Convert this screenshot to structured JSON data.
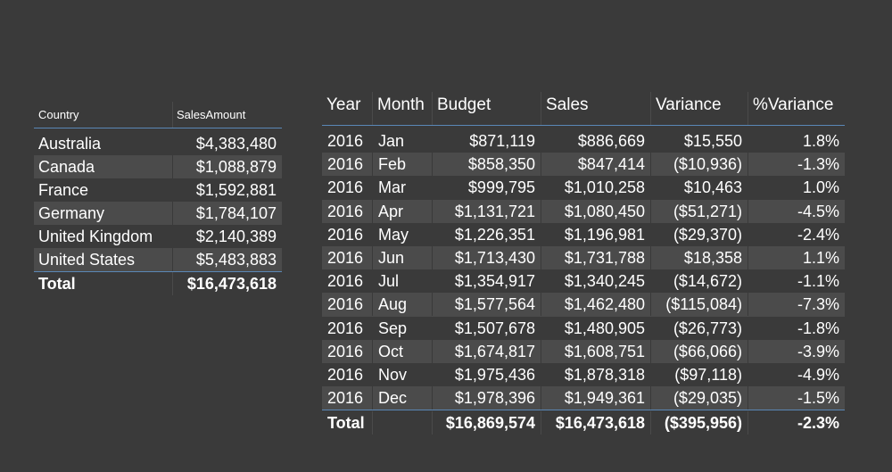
{
  "country_table": {
    "headers": [
      "Country",
      "SalesAmount"
    ],
    "rows": [
      {
        "country": "Australia",
        "sales": "$4,383,480"
      },
      {
        "country": "Canada",
        "sales": "$1,088,879"
      },
      {
        "country": "France",
        "sales": "$1,592,881"
      },
      {
        "country": "Germany",
        "sales": "$1,784,107"
      },
      {
        "country": "United Kingdom",
        "sales": "$2,140,389"
      },
      {
        "country": "United States",
        "sales": "$5,483,883"
      }
    ],
    "total": {
      "label": "Total",
      "sales": "$16,473,618"
    }
  },
  "monthly_table": {
    "headers": [
      "Year",
      "Month",
      "Budget",
      "Sales",
      "Variance",
      "%Variance"
    ],
    "rows": [
      {
        "year": "2016",
        "month": "Jan",
        "budget": "$871,119",
        "sales": "$886,669",
        "variance": "$15,550",
        "pct": "1.8%"
      },
      {
        "year": "2016",
        "month": "Feb",
        "budget": "$858,350",
        "sales": "$847,414",
        "variance": "($10,936)",
        "pct": "-1.3%"
      },
      {
        "year": "2016",
        "month": "Mar",
        "budget": "$999,795",
        "sales": "$1,010,258",
        "variance": "$10,463",
        "pct": "1.0%"
      },
      {
        "year": "2016",
        "month": "Apr",
        "budget": "$1,131,721",
        "sales": "$1,080,450",
        "variance": "($51,271)",
        "pct": "-4.5%"
      },
      {
        "year": "2016",
        "month": "May",
        "budget": "$1,226,351",
        "sales": "$1,196,981",
        "variance": "($29,370)",
        "pct": "-2.4%"
      },
      {
        "year": "2016",
        "month": "Jun",
        "budget": "$1,713,430",
        "sales": "$1,731,788",
        "variance": "$18,358",
        "pct": "1.1%"
      },
      {
        "year": "2016",
        "month": "Jul",
        "budget": "$1,354,917",
        "sales": "$1,340,245",
        "variance": "($14,672)",
        "pct": "-1.1%"
      },
      {
        "year": "2016",
        "month": "Aug",
        "budget": "$1,577,564",
        "sales": "$1,462,480",
        "variance": "($115,084)",
        "pct": "-7.3%"
      },
      {
        "year": "2016",
        "month": "Sep",
        "budget": "$1,507,678",
        "sales": "$1,480,905",
        "variance": "($26,773)",
        "pct": "-1.8%"
      },
      {
        "year": "2016",
        "month": "Oct",
        "budget": "$1,674,817",
        "sales": "$1,608,751",
        "variance": "($66,066)",
        "pct": "-3.9%"
      },
      {
        "year": "2016",
        "month": "Nov",
        "budget": "$1,975,436",
        "sales": "$1,878,318",
        "variance": "($97,118)",
        "pct": "-4.9%"
      },
      {
        "year": "2016",
        "month": "Dec",
        "budget": "$1,978,396",
        "sales": "$1,949,361",
        "variance": "($29,035)",
        "pct": "-1.5%"
      }
    ],
    "total": {
      "label": "Total",
      "month": "",
      "budget": "$16,869,574",
      "sales": "$16,473,618",
      "variance": "($395,956)",
      "pct": "-2.3%"
    }
  },
  "colors": {
    "background": "#3a3a3a",
    "row_alt": "#4b4b4b",
    "header_rule": "#5a87b6",
    "text": "#ffffff"
  }
}
